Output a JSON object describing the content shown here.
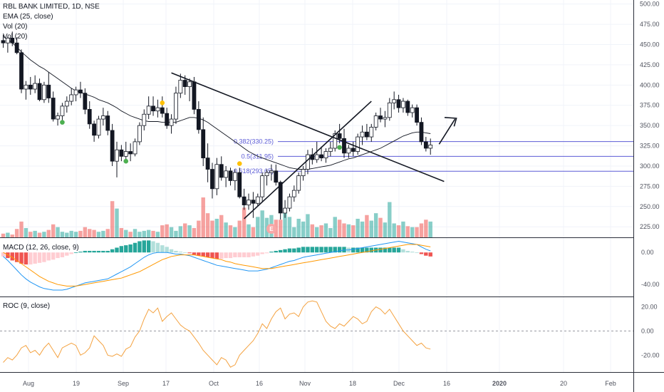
{
  "header": {
    "title": "RBL BANK LIMITED, 1D, NSE",
    "indicators": [
      "EMA (25, close)",
      "Vol (20)",
      "Vol (20)"
    ]
  },
  "macd": {
    "title": "MACD (12, 26, close, 9)"
  },
  "roc": {
    "title": "ROC (9, close)"
  },
  "earnings_badge": "E",
  "colors": {
    "up": "#26a69a",
    "down": "#ef5350",
    "ema": "#131722",
    "fib": "#5b5bd6",
    "macd_line": "#2196f3",
    "signal_line": "#ff9800",
    "roc_line": "#f4a240",
    "dot_green": "#4caf50",
    "dot_yellow": "#ffc107"
  },
  "chart_data": [
    {
      "type": "candlestick",
      "title": "RBL BANK LIMITED, 1D, NSE",
      "price_axis": {
        "ticks": [
          500,
          475,
          450,
          425,
          400,
          375,
          350,
          325,
          300,
          275,
          250,
          225
        ],
        "labels": [
          "500.00",
          "475.00",
          "450.00",
          "425.00",
          "400.00",
          "375.00",
          "350.00",
          "325.00",
          "300.00",
          "275.00",
          "250.00",
          "225.00"
        ],
        "range": [
          212,
          505
        ]
      },
      "time_axis": [
        "Aug",
        "19",
        "Sep",
        "17",
        "Oct",
        "16",
        "Nov",
        "18",
        "Dec",
        "16",
        "2020",
        "20",
        "Feb"
      ],
      "candles": [
        [
          455,
          462,
          446,
          452
        ],
        [
          452,
          460,
          440,
          458
        ],
        [
          458,
          466,
          448,
          452
        ],
        [
          452,
          459,
          438,
          440
        ],
        [
          440,
          444,
          390,
          395
        ],
        [
          395,
          405,
          382,
          400
        ],
        [
          400,
          410,
          388,
          395
        ],
        [
          395,
          412,
          390,
          402
        ],
        [
          402,
          408,
          380,
          382
        ],
        [
          382,
          404,
          378,
          400
        ],
        [
          400,
          416,
          378,
          384
        ],
        [
          384,
          392,
          355,
          358
        ],
        [
          358,
          366,
          350,
          362
        ],
        [
          362,
          378,
          356,
          374
        ],
        [
          374,
          386,
          366,
          380
        ],
        [
          380,
          396,
          375,
          388
        ],
        [
          388,
          398,
          380,
          394
        ],
        [
          394,
          404,
          384,
          390
        ],
        [
          390,
          396,
          364,
          370
        ],
        [
          370,
          380,
          346,
          352
        ],
        [
          352,
          356,
          330,
          338
        ],
        [
          338,
          362,
          334,
          358
        ],
        [
          358,
          372,
          350,
          362
        ],
        [
          362,
          368,
          338,
          344
        ],
        [
          344,
          352,
          300,
          306
        ],
        [
          306,
          330,
          286,
          320
        ],
        [
          320,
          326,
          306,
          312
        ],
        [
          312,
          330,
          308,
          318
        ],
        [
          318,
          328,
          306,
          315
        ],
        [
          315,
          334,
          312,
          330
        ],
        [
          330,
          354,
          326,
          350
        ],
        [
          350,
          370,
          344,
          364
        ],
        [
          364,
          386,
          358,
          374
        ],
        [
          374,
          386,
          362,
          368
        ],
        [
          368,
          382,
          360,
          372
        ],
        [
          372,
          386,
          360,
          365
        ],
        [
          365,
          372,
          346,
          350
        ],
        [
          350,
          364,
          340,
          358
        ],
        [
          358,
          398,
          352,
          390
        ],
        [
          390,
          414,
          384,
          406
        ],
        [
          406,
          412,
          388,
          398
        ],
        [
          398,
          408,
          380,
          404
        ],
        [
          404,
          410,
          364,
          370
        ],
        [
          370,
          380,
          340,
          345
        ],
        [
          345,
          360,
          300,
          310
        ],
        [
          310,
          328,
          280,
          296
        ],
        [
          296,
          304,
          260,
          272
        ],
        [
          272,
          310,
          264,
          302
        ],
        [
          302,
          312,
          282,
          286
        ],
        [
          286,
          300,
          274,
          294
        ],
        [
          294,
          298,
          276,
          282
        ],
        [
          282,
          296,
          270,
          292
        ],
        [
          292,
          298,
          260,
          262
        ],
        [
          262,
          272,
          246,
          252
        ],
        [
          252,
          266,
          246,
          258
        ],
        [
          258,
          268,
          236,
          254
        ],
        [
          254,
          266,
          250,
          262
        ],
        [
          262,
          292,
          256,
          288
        ],
        [
          288,
          296,
          276,
          292
        ],
        [
          292,
          302,
          282,
          294
        ],
        [
          294,
          302,
          276,
          280
        ],
        [
          280,
          282,
          234,
          242
        ],
        [
          242,
          258,
          236,
          248
        ],
        [
          248,
          266,
          244,
          262
        ],
        [
          262,
          276,
          256,
          270
        ],
        [
          270,
          292,
          266,
          288
        ],
        [
          288,
          300,
          282,
          296
        ],
        [
          296,
          320,
          290,
          314
        ],
        [
          314,
          322,
          302,
          308
        ],
        [
          308,
          330,
          304,
          314
        ],
        [
          314,
          324,
          306,
          310
        ],
        [
          310,
          322,
          304,
          318
        ],
        [
          318,
          330,
          312,
          322
        ],
        [
          322,
          344,
          318,
          340
        ],
        [
          340,
          352,
          328,
          334
        ],
        [
          334,
          346,
          310,
          316
        ],
        [
          316,
          326,
          310,
          322
        ],
        [
          322,
          330,
          312,
          318
        ],
        [
          318,
          340,
          314,
          336
        ],
        [
          336,
          350,
          326,
          342
        ],
        [
          342,
          352,
          332,
          336
        ],
        [
          336,
          352,
          330,
          348
        ],
        [
          348,
          366,
          344,
          362
        ],
        [
          362,
          372,
          354,
          358
        ],
        [
          358,
          368,
          348,
          360
        ],
        [
          360,
          384,
          356,
          378
        ],
        [
          378,
          392,
          370,
          382
        ],
        [
          382,
          388,
          366,
          372
        ],
        [
          372,
          384,
          366,
          380
        ],
        [
          380,
          382,
          362,
          366
        ],
        [
          366,
          376,
          360,
          372
        ],
        [
          372,
          376,
          350,
          354
        ],
        [
          354,
          360,
          326,
          330
        ],
        [
          330,
          336,
          318,
          322
        ],
        [
          322,
          334,
          314,
          326
        ]
      ],
      "ema_25": [
        460,
        456,
        452,
        447,
        441,
        436,
        431,
        427,
        423,
        420,
        416,
        412,
        408,
        404,
        400,
        396,
        393,
        391,
        389,
        387,
        385,
        382,
        380,
        378,
        375,
        372,
        368,
        365,
        362,
        360,
        358,
        356,
        355,
        355,
        355,
        354,
        354,
        354,
        354,
        356,
        358,
        360,
        360,
        359,
        357,
        354,
        350,
        346,
        342,
        338,
        334,
        330,
        326,
        322,
        318,
        315,
        312,
        310,
        308,
        306,
        304,
        302,
        300,
        298,
        297,
        296,
        296,
        296,
        297,
        298,
        299,
        300,
        301,
        303,
        305,
        307,
        309,
        310,
        312,
        314,
        316,
        318,
        320,
        322,
        325,
        328,
        331,
        334,
        337,
        339,
        341,
        342,
        342,
        341,
        340
      ],
      "volume": [
        8,
        10,
        6,
        18,
        34,
        20,
        12,
        14,
        10,
        12,
        16,
        28,
        22,
        12,
        10,
        14,
        12,
        14,
        22,
        18,
        16,
        12,
        14,
        18,
        78,
        62,
        20,
        16,
        12,
        18,
        12,
        14,
        16,
        14,
        12,
        26,
        28,
        22,
        14,
        24,
        30,
        26,
        20,
        36,
        86,
        52,
        36,
        40,
        48,
        32,
        26,
        22,
        36,
        64,
        28,
        22,
        44,
        58,
        42,
        48,
        38,
        38,
        60,
        44,
        22,
        40,
        34,
        50,
        28,
        22,
        26,
        30,
        20,
        44,
        38,
        30,
        28,
        26,
        40,
        34,
        48,
        36,
        52,
        42,
        32,
        76,
        30,
        26,
        34,
        24,
        22,
        22,
        30,
        38,
        34
      ],
      "fib_levels": [
        {
          "label": "0.382(330.25)",
          "value": 330.25
        },
        {
          "label": "0.5(311.95)",
          "value": 311.95
        },
        {
          "label": "0.618(293.65)",
          "value": 293.65
        }
      ],
      "trendlines": [
        {
          "from": [
            37,
            415
          ],
          "to": [
            97,
            281
          ]
        },
        {
          "from": [
            53,
            235
          ],
          "to": [
            81,
            380
          ]
        }
      ]
    },
    {
      "type": "line",
      "title": "MACD (12, 26, close, 9)",
      "axis_labels": [
        "0.00",
        "-40.00"
      ],
      "axis_values": [
        0,
        -40
      ],
      "range": [
        -55,
        18
      ],
      "macd": [
        -5,
        -10,
        -16,
        -22,
        -28,
        -33,
        -37,
        -40,
        -43,
        -45,
        -46,
        -47,
        -47,
        -47,
        -46,
        -44,
        -42,
        -40,
        -38,
        -37,
        -36,
        -35,
        -34,
        -33,
        -30,
        -27,
        -24,
        -21,
        -18,
        -14,
        -10,
        -6,
        -3,
        -1,
        0,
        0,
        0,
        -1,
        -2,
        -2,
        -3,
        -4,
        -6,
        -8,
        -10,
        -12,
        -14,
        -16,
        -17,
        -18,
        -19,
        -20,
        -21,
        -22,
        -23,
        -23,
        -23,
        -22,
        -21,
        -19,
        -17,
        -15,
        -13,
        -11,
        -10,
        -8,
        -6,
        -5,
        -4,
        -3,
        -2,
        -1,
        0,
        1,
        2,
        3,
        3,
        4,
        5,
        6,
        7,
        8,
        9,
        10,
        11,
        12,
        13,
        14,
        13,
        12,
        11,
        10,
        7,
        4,
        2
      ],
      "signal": [
        0,
        -3,
        -6,
        -10,
        -14,
        -18,
        -22,
        -26,
        -30,
        -33,
        -36,
        -38,
        -40,
        -41,
        -42,
        -42,
        -42,
        -41,
        -40,
        -39,
        -38,
        -37,
        -36,
        -35,
        -34,
        -33,
        -32,
        -30,
        -28,
        -26,
        -24,
        -21,
        -18,
        -15,
        -12,
        -9,
        -7,
        -5,
        -4,
        -3,
        -3,
        -3,
        -3,
        -4,
        -5,
        -6,
        -7,
        -8,
        -9,
        -11,
        -12,
        -14,
        -15,
        -16,
        -17,
        -18,
        -19,
        -20,
        -20,
        -20,
        -19,
        -18,
        -17,
        -16,
        -15,
        -14,
        -13,
        -12,
        -11,
        -10,
        -9,
        -8,
        -7,
        -6,
        -5,
        -4,
        -3,
        -2,
        -1,
        0,
        1,
        2,
        3,
        4,
        5,
        6,
        7,
        8,
        9,
        10,
        10,
        10,
        9,
        8,
        7
      ],
      "histogram": [
        -5,
        -7,
        -10,
        -12,
        -14,
        -15,
        -15,
        -14,
        -13,
        -12,
        -10,
        -9,
        -7,
        -6,
        -4,
        -2,
        0,
        1,
        2,
        2,
        2,
        2,
        2,
        2,
        4,
        6,
        8,
        9,
        10,
        12,
        14,
        15,
        15,
        14,
        12,
        9,
        7,
        4,
        2,
        1,
        0,
        -1,
        -3,
        -4,
        -5,
        -6,
        -7,
        -8,
        -8,
        -7,
        -7,
        -6,
        -6,
        -6,
        -6,
        -5,
        -4,
        -2,
        -1,
        1,
        2,
        3,
        4,
        5,
        5,
        6,
        7,
        7,
        7,
        7,
        7,
        7,
        7,
        7,
        7,
        7,
        6,
        6,
        6,
        6,
        6,
        6,
        6,
        6,
        6,
        6,
        6,
        6,
        4,
        2,
        1,
        0,
        -2,
        -4,
        -5
      ]
    },
    {
      "type": "line",
      "title": "ROC (9, close)",
      "axis_labels": [
        "20.00",
        "0.00",
        "-20.00"
      ],
      "axis_values": [
        20,
        0,
        -20
      ],
      "range": [
        -34,
        28
      ],
      "values": [
        -26,
        -22,
        -24,
        -20,
        -14,
        -12,
        -18,
        -16,
        -20,
        -14,
        -10,
        -16,
        -22,
        -14,
        -12,
        -10,
        -12,
        -20,
        -18,
        -14,
        -4,
        -8,
        -12,
        -20,
        -21,
        -19,
        -21,
        -15,
        -13,
        -5,
        0,
        10,
        18,
        15,
        19,
        8,
        12,
        15,
        10,
        5,
        2,
        0,
        -5,
        -10,
        -16,
        -20,
        -24,
        -28,
        -22,
        -24,
        -30,
        -28,
        -20,
        -16,
        -12,
        -8,
        -2,
        6,
        2,
        10,
        16,
        19,
        10,
        14,
        15,
        12,
        20,
        24,
        25,
        24,
        16,
        8,
        4,
        2,
        6,
        4,
        8,
        12,
        10,
        6,
        8,
        16,
        20,
        18,
        14,
        18,
        12,
        6,
        0,
        -4,
        -8,
        -12,
        -10,
        -14,
        -15
      ]
    }
  ]
}
